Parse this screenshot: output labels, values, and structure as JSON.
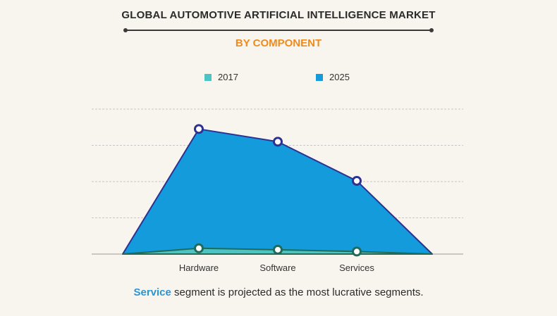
{
  "title": "GLOBAL AUTOMOTIVE ARTIFICIAL INTELLIGENCE MARKET",
  "subtitle": "BY COMPONENT",
  "footer": {
    "highlight": "Service",
    "rest": " segment is projected as the most lucrative segments."
  },
  "colors": {
    "series_2017_fill": "#4bc4c4",
    "series_2017_line": "#1f6b5a",
    "series_2025_fill": "#139bdb",
    "series_2025_line": "#2e3192",
    "grid": "#c8c8c8",
    "axis": "#9a9a9a"
  },
  "chart_data": {
    "type": "area",
    "categories": [
      "Hardware",
      "Software",
      "Services"
    ],
    "ylim": [
      0,
      4
    ],
    "grid": true,
    "legend_position": "top-center",
    "series": [
      {
        "name": "2017",
        "values": [
          0.16,
          0.12,
          0.07
        ]
      },
      {
        "name": "2025",
        "values": [
          3.45,
          3.1,
          2.02
        ]
      }
    ]
  }
}
